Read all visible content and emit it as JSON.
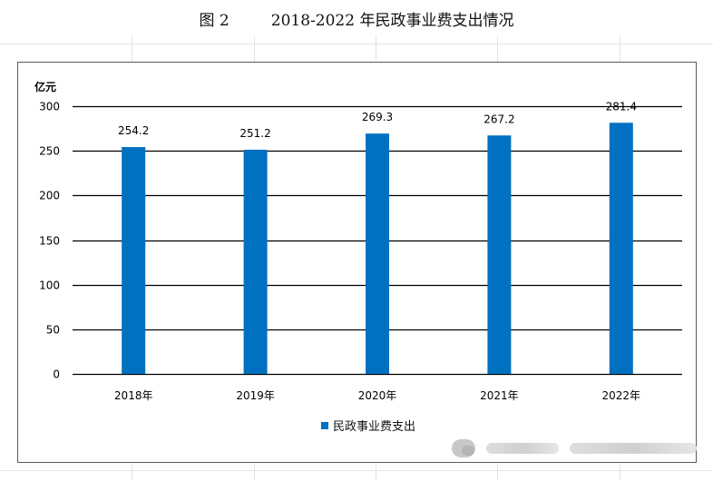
{
  "figure": {
    "number": "图 2",
    "title": "2018-2022 年民政事业费支出情况"
  },
  "colors": {
    "bar": "#0070c0",
    "gridline": "#000000",
    "frame": "#5a5a5a"
  },
  "watermark": {
    "icon": "wechat-icon"
  },
  "chart_data": {
    "type": "bar",
    "title": "",
    "xlabel": "",
    "ylabel": "亿元",
    "categories": [
      "2018年",
      "2019年",
      "2020年",
      "2021年",
      "2022年"
    ],
    "series": [
      {
        "name": "民政事业费支出",
        "values": [
          254.2,
          251.2,
          269.3,
          267.2,
          281.4
        ],
        "color": "#0070c0"
      }
    ],
    "data_labels": [
      "254.2",
      "251.2",
      "269.3",
      "267.2",
      "281.4"
    ],
    "ylim": [
      0,
      300
    ],
    "yticks": [
      0,
      50,
      100,
      150,
      200,
      250,
      300
    ],
    "grid": true,
    "legend": "bottom"
  }
}
